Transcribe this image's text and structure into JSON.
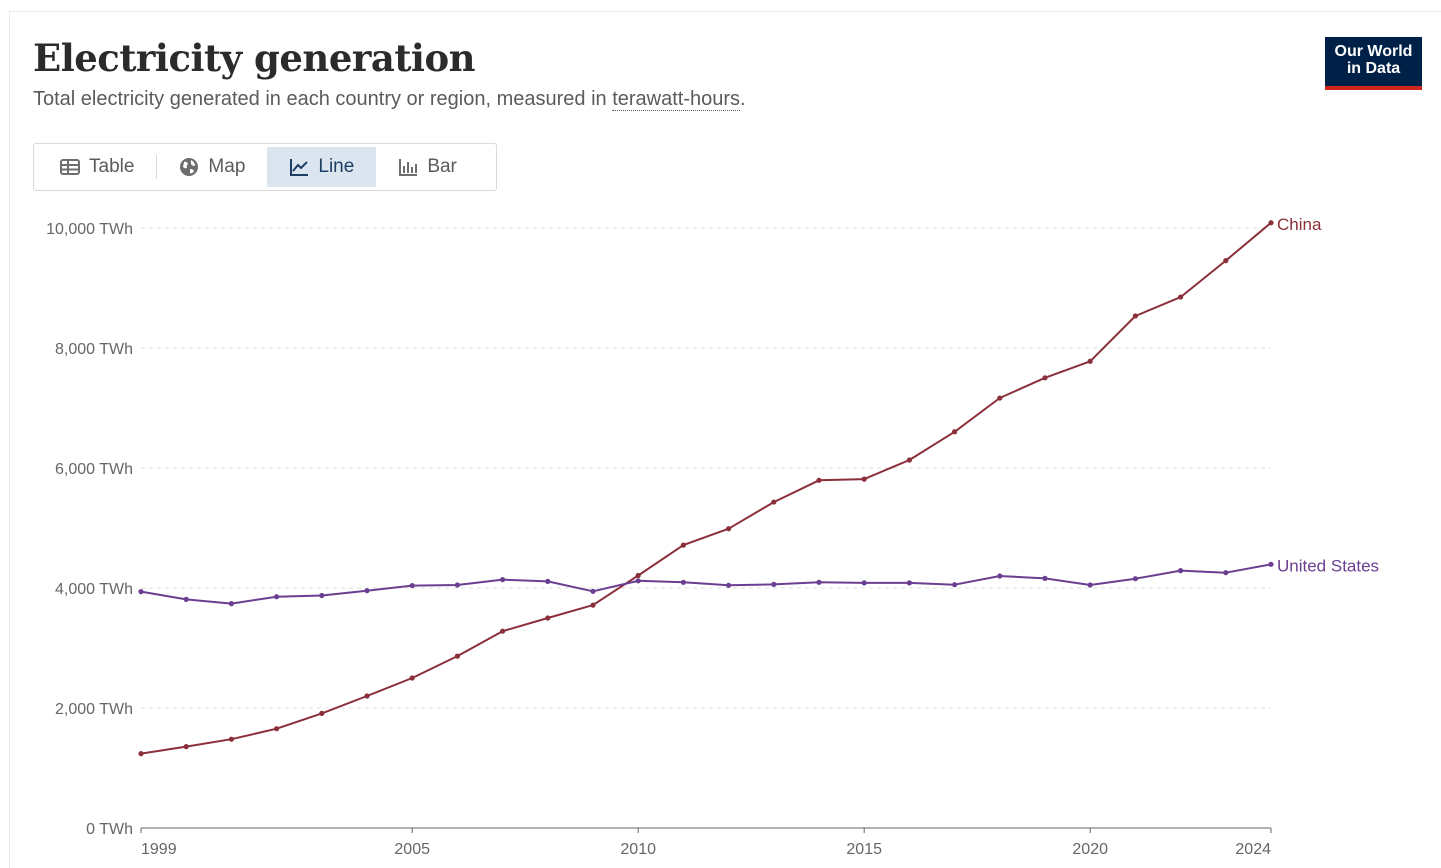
{
  "header": {
    "title": "Electricity generation",
    "subtitle_prefix": "Total electricity generated in each country or region, measured in ",
    "subtitle_link": "terawatt-hours",
    "subtitle_suffix": ".",
    "logo_line1": "Our World",
    "logo_line2": "in Data"
  },
  "tabs": [
    {
      "label": "Table",
      "icon": "table-icon",
      "active": false
    },
    {
      "label": "Map",
      "icon": "globe-icon",
      "active": false
    },
    {
      "label": "Line",
      "icon": "line-chart-icon",
      "active": true
    },
    {
      "label": "Bar",
      "icon": "bar-chart-icon",
      "active": false
    }
  ],
  "colors": {
    "china": "#8b2f3a",
    "united_states": "#6b3e91",
    "grid": "#dddddd",
    "axis": "#666666"
  },
  "chart_data": {
    "type": "line",
    "title": "Electricity generation",
    "xlabel": "",
    "ylabel": "",
    "unit": "TWh",
    "xlim": [
      1999,
      2024
    ],
    "ylim": [
      0,
      10000
    ],
    "x_ticks": [
      1999,
      2005,
      2010,
      2015,
      2020,
      2024
    ],
    "y_ticks": [
      {
        "value": 0,
        "label": "0 TWh"
      },
      {
        "value": 2000,
        "label": "2,000 TWh"
      },
      {
        "value": 4000,
        "label": "4,000 TWh"
      },
      {
        "value": 6000,
        "label": "6,000 TWh"
      },
      {
        "value": 8000,
        "label": "8,000 TWh"
      },
      {
        "value": 10000,
        "label": "10,000 TWh"
      }
    ],
    "x": [
      1999,
      2000,
      2001,
      2002,
      2003,
      2004,
      2005,
      2006,
      2007,
      2008,
      2009,
      2010,
      2011,
      2012,
      2013,
      2014,
      2015,
      2016,
      2017,
      2018,
      2019,
      2020,
      2021,
      2022,
      2023,
      2024
    ],
    "series": [
      {
        "name": "China",
        "color_key": "china",
        "values": [
          1240,
          1356,
          1480,
          1655,
          1910,
          2200,
          2500,
          2865,
          3280,
          3500,
          3715,
          4208,
          4715,
          4988,
          5432,
          5795,
          5815,
          6133,
          6604,
          7166,
          7503,
          7779,
          8534,
          8849,
          9456,
          10087
        ]
      },
      {
        "name": "United States",
        "color_key": "united_states",
        "values": [
          3940,
          3810,
          3740,
          3855,
          3875,
          3955,
          4040,
          4050,
          4140,
          4110,
          3945,
          4120,
          4095,
          4045,
          4060,
          4095,
          4085,
          4085,
          4055,
          4200,
          4160,
          4050,
          4155,
          4290,
          4255,
          4395
        ]
      }
    ]
  }
}
